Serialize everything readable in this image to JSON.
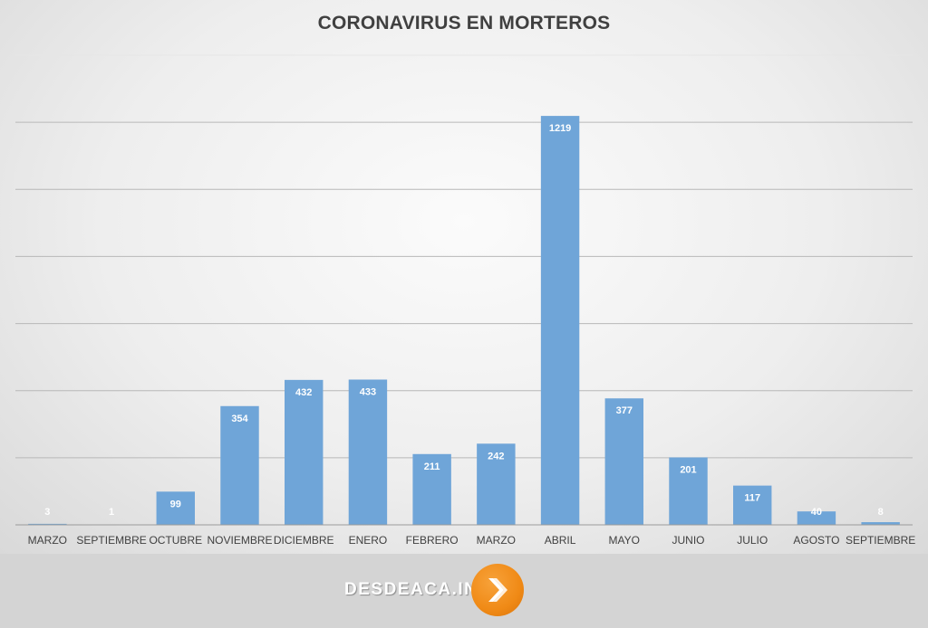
{
  "chart_data": {
    "type": "bar",
    "title": "CORONAVIRUS EN MORTEROS",
    "categories": [
      "MARZO",
      "SEPTIEMBRE",
      "OCTUBRE",
      "NOVIEMBRE",
      "DICIEMBRE",
      "ENERO",
      "FEBRERO",
      "MARZO",
      "ABRIL",
      "MAYO",
      "JUNIO",
      "JULIO",
      "AGOSTO",
      "SEPTIEMBRE"
    ],
    "values": [
      3,
      1,
      99,
      354,
      432,
      433,
      211,
      242,
      1219,
      377,
      201,
      117,
      40,
      8
    ],
    "ylim": [
      0,
      1400
    ],
    "ygrid_step": 200,
    "grid": true,
    "bar_color": "#6fa5d8",
    "data_labels": true
  },
  "footer": {
    "brand": "DESDEACA.INFO",
    "brand_icon": "chevron-right-icon",
    "accent_color": "#f08a16"
  }
}
